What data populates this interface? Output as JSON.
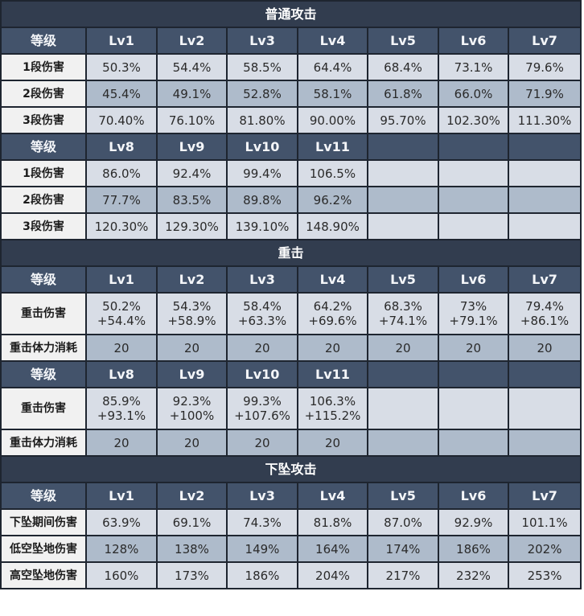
{
  "sections": [
    {
      "title": "普通攻击",
      "blocks": [
        {
          "header": [
            "等级",
            "Lv1",
            "Lv2",
            "Lv3",
            "Lv4",
            "Lv5",
            "Lv6",
            "Lv7"
          ],
          "rows": [
            {
              "label": "1段伤害",
              "shade": "light",
              "values": [
                "50.3%",
                "54.4%",
                "58.5%",
                "64.4%",
                "68.4%",
                "73.1%",
                "79.6%"
              ]
            },
            {
              "label": "2段伤害",
              "shade": "dark",
              "values": [
                "45.4%",
                "49.1%",
                "52.8%",
                "58.1%",
                "61.8%",
                "66.0%",
                "71.9%"
              ]
            },
            {
              "label": "3段伤害",
              "shade": "light",
              "values": [
                "70.40%",
                "76.10%",
                "81.80%",
                "90.00%",
                "95.70%",
                "102.30%",
                "111.30%"
              ]
            }
          ]
        },
        {
          "header": [
            "等级",
            "Lv8",
            "Lv9",
            "Lv10",
            "Lv11",
            "",
            "",
            ""
          ],
          "rows": [
            {
              "label": "1段伤害",
              "shade": "light",
              "values": [
                "86.0%",
                "92.4%",
                "99.4%",
                "106.5%",
                "",
                "",
                ""
              ]
            },
            {
              "label": "2段伤害",
              "shade": "dark",
              "values": [
                "77.7%",
                "83.5%",
                "89.8%",
                "96.2%",
                "",
                "",
                ""
              ]
            },
            {
              "label": "3段伤害",
              "shade": "light",
              "values": [
                "120.30%",
                "129.30%",
                "139.10%",
                "148.90%",
                "",
                "",
                ""
              ]
            }
          ]
        }
      ]
    },
    {
      "title": "重击",
      "blocks": [
        {
          "header": [
            "等级",
            "Lv1",
            "Lv2",
            "Lv3",
            "Lv4",
            "Lv5",
            "Lv6",
            "Lv7"
          ],
          "rows": [
            {
              "label": "重击伤害",
              "shade": "light",
              "tall": true,
              "values": [
                [
                  "50.2%",
                  "+54.4%"
                ],
                [
                  "54.3%",
                  "+58.9%"
                ],
                [
                  "58.4%",
                  "+63.3%"
                ],
                [
                  "64.2%",
                  "+69.6%"
                ],
                [
                  "68.3%",
                  "+74.1%"
                ],
                [
                  "73%",
                  "+79.1%"
                ],
                [
                  "79.4%",
                  "+86.1%"
                ]
              ]
            },
            {
              "label": "重击体力消耗",
              "shade": "dark",
              "values": [
                "20",
                "20",
                "20",
                "20",
                "20",
                "20",
                "20"
              ]
            }
          ]
        },
        {
          "header": [
            "等级",
            "Lv8",
            "Lv9",
            "Lv10",
            "Lv11",
            "",
            "",
            ""
          ],
          "rows": [
            {
              "label": "重击伤害",
              "shade": "light",
              "tall": true,
              "values": [
                [
                  "85.9%",
                  "+93.1%"
                ],
                [
                  "92.3%",
                  "+100%"
                ],
                [
                  "99.3%",
                  "+107.6%"
                ],
                [
                  "106.3%",
                  "+115.2%"
                ],
                [
                  "",
                  ""
                ],
                [
                  "",
                  ""
                ],
                [
                  "",
                  ""
                ]
              ]
            },
            {
              "label": "重击体力消耗",
              "shade": "dark",
              "values": [
                "20",
                "20",
                "20",
                "20",
                "",
                "",
                ""
              ]
            }
          ]
        }
      ]
    },
    {
      "title": "下坠攻击",
      "blocks": [
        {
          "header": [
            "等级",
            "Lv1",
            "Lv2",
            "Lv3",
            "Lv4",
            "Lv5",
            "Lv6",
            "Lv7"
          ],
          "rows": [
            {
              "label": "下坠期间伤害",
              "shade": "light",
              "values": [
                "63.9%",
                "69.1%",
                "74.3%",
                "81.8%",
                "87.0%",
                "92.9%",
                "101.1%"
              ]
            },
            {
              "label": "低空坠地伤害",
              "shade": "dark",
              "values": [
                "128%",
                "138%",
                "149%",
                "164%",
                "174%",
                "186%",
                "202%"
              ]
            },
            {
              "label": "高空坠地伤害",
              "shade": "light",
              "values": [
                "160%",
                "173%",
                "186%",
                "204%",
                "217%",
                "232%",
                "253%"
              ]
            }
          ]
        }
      ]
    }
  ]
}
